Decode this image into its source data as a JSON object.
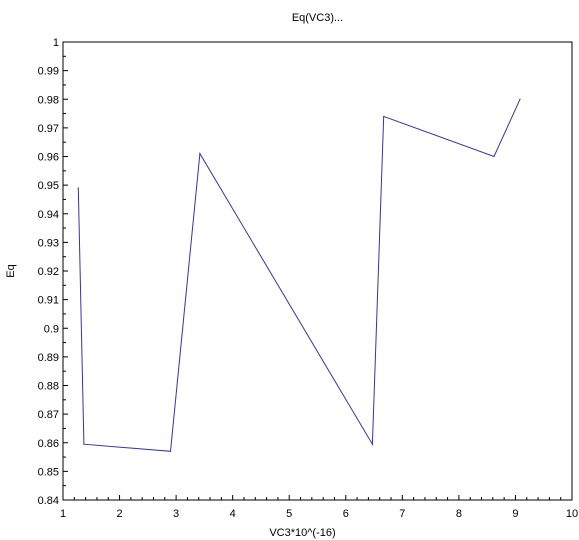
{
  "chart_data": {
    "type": "line",
    "title": "Eq(VC3)...",
    "xlabel": "VC3*10^(-16)",
    "ylabel": "Eq",
    "xlim": [
      1,
      10
    ],
    "ylim": [
      0.84,
      1
    ],
    "xticks": [
      1,
      2,
      3,
      4,
      5,
      6,
      7,
      8,
      9,
      10
    ],
    "yticks": [
      0.84,
      0.85,
      0.86,
      0.87,
      0.88,
      0.89,
      0.9,
      0.91,
      0.92,
      0.93,
      0.94,
      0.95,
      0.96,
      0.97,
      0.98,
      0.99,
      1
    ],
    "xtick_labels": [
      "1",
      "2",
      "3",
      "4",
      "5",
      "6",
      "7",
      "8",
      "9",
      "10"
    ],
    "ytick_labels": [
      "0.84",
      "0.85",
      "0.86",
      "0.87",
      "0.88",
      "0.89",
      "0.9",
      "0.91",
      "0.92",
      "0.93",
      "0.94",
      "0.95",
      "0.96",
      "0.97",
      "0.98",
      "0.99",
      "1"
    ],
    "grid": false,
    "line_color": "#3333aa",
    "series": [
      {
        "x": [
          1.27,
          1.37,
          2.9,
          3.42,
          6.47,
          6.67,
          8.62,
          9.08
        ],
        "y": [
          0.949,
          0.8595,
          0.857,
          0.961,
          0.8595,
          0.974,
          0.96,
          0.98
        ]
      }
    ]
  }
}
